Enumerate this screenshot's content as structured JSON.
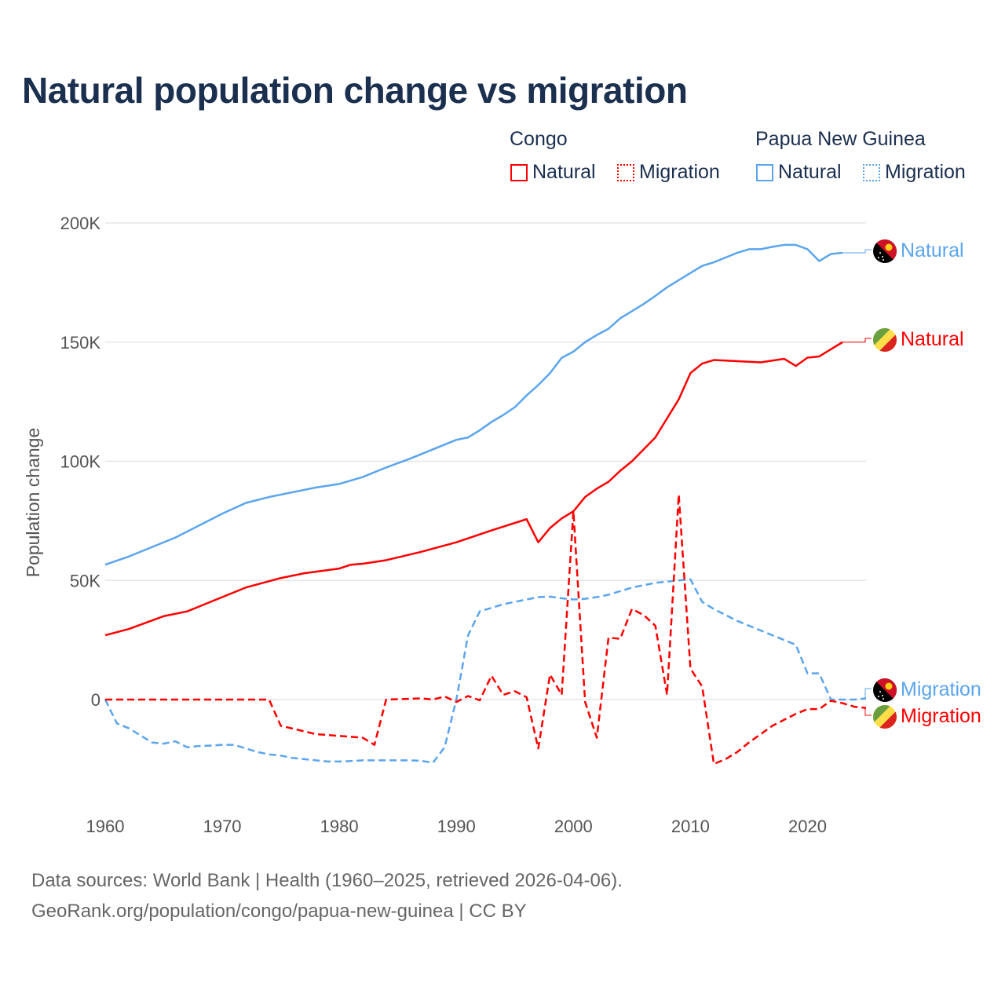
{
  "title": "Natural population change vs migration",
  "legend": {
    "groups": [
      {
        "country": "Congo",
        "items": [
          "Natural",
          "Migration"
        ],
        "color": "#ff0000"
      },
      {
        "country": "Papua New Guinea",
        "items": [
          "Natural",
          "Migration"
        ],
        "color": "#5aa5ee"
      }
    ]
  },
  "footer": {
    "line1": "Data sources: World Bank | Health (1960–2025, retrieved 2026-04-06).",
    "line2": "GeoRank.org/population/congo/papua-new-guinea | CC BY"
  },
  "chart_data": {
    "type": "line",
    "title": "Natural population change vs migration",
    "xlabel": "",
    "ylabel": "Population change",
    "xlim": [
      1960,
      2025
    ],
    "ylim": [
      -30000,
      200000
    ],
    "xticks": [
      1960,
      1970,
      1980,
      1990,
      2000,
      2010,
      2020
    ],
    "xtick_labels": [
      "1960",
      "1970",
      "1980",
      "1990",
      "2000",
      "2010",
      "2020"
    ],
    "yticks": [
      0,
      50000,
      100000,
      150000,
      200000
    ],
    "ytick_labels": [
      "0",
      "50K",
      "100K",
      "150K",
      "200K"
    ],
    "grid": true,
    "legend_position": "top-right",
    "series": [
      {
        "name": "Papua New Guinea Natural",
        "end_label": "Natural",
        "color": "#5aa5ee",
        "dash": false,
        "flag": "png",
        "x": [
          1960,
          1962,
          1964,
          1966,
          1968,
          1970,
          1972,
          1974,
          1976,
          1978,
          1980,
          1982,
          1984,
          1986,
          1988,
          1990,
          1991,
          1992,
          1993,
          1994,
          1995,
          1996,
          1997,
          1998,
          1999,
          2000,
          2001,
          2002,
          2003,
          2004,
          2005,
          2006,
          2007,
          2008,
          2009,
          2010,
          2011,
          2012,
          2013,
          2014,
          2015,
          2016,
          2017,
          2018,
          2019,
          2020,
          2021,
          2022,
          2023
        ],
        "values": [
          56600,
          60000,
          64000,
          68000,
          73000,
          78000,
          82500,
          85000,
          87000,
          89000,
          90500,
          93400,
          97400,
          101000,
          105000,
          109000,
          110000,
          113000,
          116500,
          119400,
          122700,
          127600,
          132000,
          137000,
          143400,
          146000,
          150000,
          153000,
          155600,
          160000,
          163000,
          166000,
          169400,
          173000,
          176000,
          179000,
          182000,
          183500,
          185500,
          187500,
          189000,
          189000,
          190000,
          190800,
          190800,
          189000,
          184000,
          187000,
          187500
        ]
      },
      {
        "name": "Congo Natural",
        "end_label": "Natural",
        "color": "#ff0000",
        "dash": false,
        "flag": "congo",
        "x": [
          1960,
          1962,
          1965,
          1967,
          1970,
          1972,
          1975,
          1977,
          1980,
          1981,
          1982,
          1984,
          1987,
          1990,
          1993,
          1996,
          1997,
          1998,
          1999,
          2000,
          2001,
          2002,
          2003,
          2004,
          2005,
          2006,
          2007,
          2008,
          2009,
          2010,
          2011,
          2012,
          2014,
          2016,
          2018,
          2019,
          2020,
          2021,
          2022,
          2023
        ],
        "values": [
          27000,
          29600,
          35000,
          37000,
          43000,
          47000,
          51000,
          53000,
          55000,
          56600,
          57000,
          58500,
          62000,
          66000,
          71000,
          75700,
          66000,
          72000,
          76000,
          79000,
          85000,
          88500,
          91400,
          96000,
          100000,
          105000,
          110000,
          118000,
          126000,
          137000,
          141000,
          142500,
          142000,
          141500,
          143000,
          140000,
          143500,
          144000,
          147000,
          150000
        ]
      },
      {
        "name": "Papua New Guinea Migration",
        "end_label": "Migration",
        "color": "#5aa5ee",
        "dash": true,
        "flag": "png",
        "x": [
          1960,
          1961,
          1962,
          1963,
          1964,
          1965,
          1966,
          1967,
          1968,
          1969,
          1970,
          1971,
          1972,
          1973,
          1974,
          1975,
          1976,
          1977,
          1978,
          1979,
          1980,
          1981,
          1982,
          1983,
          1984,
          1985,
          1986,
          1987,
          1988,
          1989,
          1990,
          1991,
          1992,
          1993,
          1994,
          1995,
          1996,
          1997,
          1998,
          1999,
          2000,
          2001,
          2002,
          2003,
          2004,
          2005,
          2006,
          2007,
          2008,
          2009,
          2010,
          2011,
          2012,
          2013,
          2014,
          2015,
          2016,
          2017,
          2018,
          2019,
          2020,
          2021,
          2022,
          2023,
          2024,
          2025
        ],
        "values": [
          0,
          -10000,
          -12000,
          -15000,
          -18000,
          -18500,
          -17500,
          -20000,
          -19500,
          -19300,
          -19000,
          -19000,
          -20500,
          -22000,
          -23000,
          -23500,
          -24500,
          -25000,
          -25500,
          -26000,
          -26000,
          -25800,
          -25500,
          -25500,
          -25500,
          -25500,
          -25500,
          -25700,
          -26500,
          -20000,
          0,
          27000,
          37000,
          38500,
          40000,
          41000,
          42000,
          43000,
          43200,
          42500,
          42000,
          42300,
          43000,
          44000,
          45500,
          47000,
          48000,
          49000,
          49500,
          50000,
          50500,
          41000,
          38000,
          35500,
          33000,
          31000,
          29000,
          27000,
          25000,
          23000,
          11000,
          11000,
          0,
          0,
          0,
          500
        ]
      },
      {
        "name": "Congo Migration",
        "end_label": "Migration",
        "color": "#ff0000",
        "dash": true,
        "flag": "congo",
        "x": [
          1960,
          1974,
          1975,
          1978,
          1982,
          1983,
          1984,
          1987,
          1988,
          1989,
          1990,
          1991,
          1992,
          1993,
          1994,
          1995,
          1996,
          1997,
          1998,
          1999,
          2000,
          2001,
          2002,
          2003,
          2004,
          2005,
          2006,
          2007,
          2008,
          2009,
          2010,
          2011,
          2012,
          2013,
          2014,
          2015,
          2016,
          2017,
          2018,
          2019,
          2020,
          2021,
          2022,
          2023,
          2024,
          2025
        ],
        "values": [
          0,
          0,
          -11000,
          -14500,
          -16000,
          -19000,
          0,
          500,
          0,
          1300,
          -1000,
          1500,
          -300,
          10000,
          2000,
          3500,
          1000,
          -20500,
          10500,
          2000,
          79000,
          -1000,
          -16000,
          26000,
          25500,
          38000,
          35500,
          31000,
          2000,
          86000,
          13000,
          5500,
          -27000,
          -25000,
          -22000,
          -18000,
          -14500,
          -11000,
          -8500,
          -6000,
          -4000,
          -4000,
          -500,
          -1500,
          -3000,
          -3500
        ]
      }
    ]
  }
}
